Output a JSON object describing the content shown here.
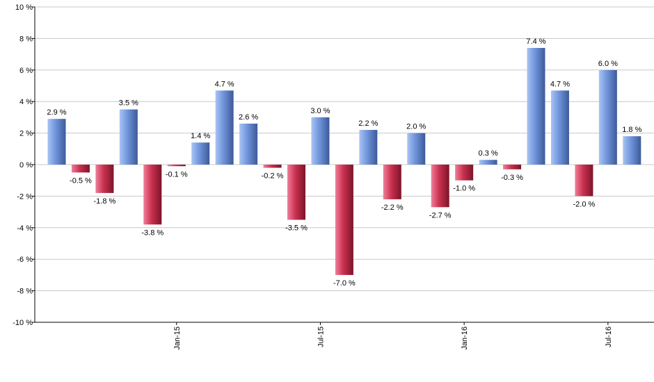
{
  "chart_data": {
    "type": "bar",
    "title": "",
    "xlabel": "",
    "ylabel": "",
    "ylim": [
      -10,
      10
    ],
    "yticks": [
      -10,
      -8,
      -6,
      -4,
      -2,
      0,
      2,
      4,
      6,
      8,
      10
    ],
    "ytick_labels": [
      "-10 %",
      "-8 %",
      "-6 %",
      "-4 %",
      "-2 %",
      "0 %",
      "2 %",
      "4 %",
      "6 %",
      "8 %",
      "10 %"
    ],
    "xtick_labels": [
      "Jan-15",
      "Jul-15",
      "Jan-16",
      "Jul-16"
    ],
    "xtick_bar_index": [
      5,
      11,
      17,
      23
    ],
    "values": [
      2.9,
      -0.5,
      -1.8,
      3.5,
      -3.8,
      -0.1,
      1.4,
      4.7,
      2.6,
      -0.2,
      -3.5,
      3.0,
      -7.0,
      2.2,
      -2.2,
      2.0,
      -2.7,
      -1.0,
      0.3,
      -0.3,
      7.4,
      4.7,
      -2.0,
      6.0,
      1.8
    ],
    "data_labels": [
      "2.9 %",
      "-0.5 %",
      "-1.8 %",
      "3.5 %",
      "-3.8 %",
      "-0.1 %",
      "1.4 %",
      "4.7 %",
      "2.6 %",
      "-0.2 %",
      "-3.5 %",
      "3.0 %",
      "-7.0 %",
      "2.2 %",
      "-2.2 %",
      "2.0 %",
      "-2.7 %",
      "-1.0 %",
      "0.3 %",
      "-0.3 %",
      "7.4 %",
      "4.7 %",
      "-2.0 %",
      "6.0 %",
      "1.8 %"
    ],
    "grid": true,
    "legend": "none",
    "colors": {
      "positive_light": "#a9c4f5",
      "positive_mid": "#6f93da",
      "positive_dark": "#3d5a9a",
      "negative_light": "#f07f9a",
      "negative_mid": "#c9304f",
      "negative_dark": "#7c1528",
      "grid": "#c8c8c8",
      "axis": "#000000"
    }
  }
}
